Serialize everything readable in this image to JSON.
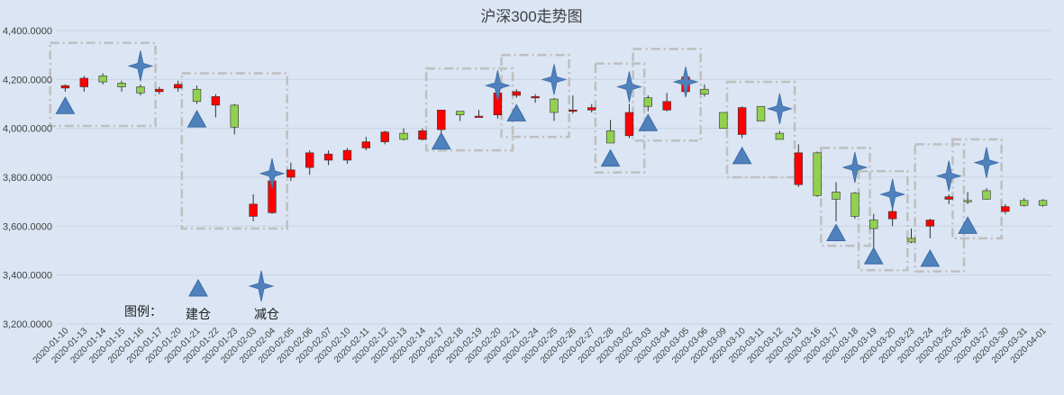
{
  "chart_data": {
    "type": "candlestick",
    "title": "沪深300走势图",
    "xlabel": "",
    "ylabel": "",
    "ylim": [
      3200,
      4400
    ],
    "y_ticks": [
      "3,200.0000",
      "3,400.0000",
      "3,600.0000",
      "3,800.0000",
      "4,000.0000",
      "4,200.0000",
      "4,400.0000"
    ],
    "grid": true,
    "colors": {
      "up": "#ff0000",
      "down": "#92d050",
      "marker": "#4f81bd",
      "box": "#bfbfbf"
    },
    "dates": [
      "2020-01-10",
      "2020-01-13",
      "2020-01-14",
      "2020-01-15",
      "2020-01-16",
      "2020-01-17",
      "2020-01-20",
      "2020-01-21",
      "2020-01-22",
      "2020-01-23",
      "2020-02-03",
      "2020-02-04",
      "2020-02-05",
      "2020-02-06",
      "2020-02-07",
      "2020-02-10",
      "2020-02-11",
      "2020-02-12",
      "2020-02-13",
      "2020-02-14",
      "2020-02-17",
      "2020-02-18",
      "2020-02-19",
      "2020-02-20",
      "2020-02-21",
      "2020-02-24",
      "2020-02-25",
      "2020-02-26",
      "2020-02-27",
      "2020-02-28",
      "2020-03-02",
      "2020-03-03",
      "2020-03-04",
      "2020-03-05",
      "2020-03-06",
      "2020-03-09",
      "2020-03-10",
      "2020-03-11",
      "2020-03-12",
      "2020-03-13",
      "2020-03-16",
      "2020-03-17",
      "2020-03-18",
      "2020-03-19",
      "2020-03-20",
      "2020-03-23",
      "2020-03-24",
      "2020-03-25",
      "2020-03-26",
      "2020-03-27",
      "2020-03-30",
      "2020-03-31",
      "2020-04-01"
    ],
    "ohlc": [
      [
        4165,
        4180,
        4150,
        4175
      ],
      [
        4170,
        4215,
        4150,
        4205
      ],
      [
        4215,
        4225,
        4180,
        4190
      ],
      [
        4185,
        4195,
        4150,
        4170
      ],
      [
        4170,
        4180,
        4135,
        4145
      ],
      [
        4150,
        4170,
        4140,
        4160
      ],
      [
        4165,
        4195,
        4150,
        4180
      ],
      [
        4160,
        4175,
        4100,
        4110
      ],
      [
        4095,
        4140,
        4045,
        4130
      ],
      [
        4095,
        4100,
        3975,
        4005
      ],
      [
        3640,
        3730,
        3620,
        3690
      ],
      [
        3655,
        3790,
        3650,
        3785
      ],
      [
        3800,
        3860,
        3785,
        3830
      ],
      [
        3840,
        3910,
        3810,
        3900
      ],
      [
        3870,
        3910,
        3850,
        3895
      ],
      [
        3870,
        3920,
        3855,
        3910
      ],
      [
        3920,
        3965,
        3910,
        3945
      ],
      [
        3945,
        3990,
        3935,
        3985
      ],
      [
        3980,
        4000,
        3950,
        3955
      ],
      [
        3955,
        4000,
        3950,
        3990
      ],
      [
        3995,
        4075,
        3980,
        4075
      ],
      [
        4070,
        4070,
        4030,
        4055
      ],
      [
        4050,
        4075,
        4045,
        4050
      ],
      [
        4055,
        4145,
        4040,
        4145
      ],
      [
        4135,
        4160,
        4125,
        4150
      ],
      [
        4130,
        4140,
        4105,
        4130
      ],
      [
        4120,
        4125,
        4030,
        4065
      ],
      [
        4075,
        4135,
        4060,
        4075
      ],
      [
        4075,
        4100,
        4065,
        4085
      ],
      [
        3990,
        4035,
        3940,
        3940
      ],
      [
        3970,
        4100,
        3960,
        4065
      ],
      [
        4125,
        4135,
        4070,
        4090
      ],
      [
        4075,
        4145,
        4070,
        4110
      ],
      [
        4150,
        4220,
        4145,
        4210
      ],
      [
        4160,
        4180,
        4130,
        4140
      ],
      [
        4065,
        4065,
        4000,
        4000
      ],
      [
        3975,
        4090,
        3960,
        4085
      ],
      [
        4090,
        4090,
        4030,
        4030
      ],
      [
        3980,
        3990,
        3955,
        3955
      ],
      [
        3770,
        3935,
        3760,
        3900
      ],
      [
        3900,
        3905,
        3720,
        3725
      ],
      [
        3740,
        3780,
        3620,
        3710
      ],
      [
        3735,
        3740,
        3630,
        3640
      ],
      [
        3625,
        3650,
        3500,
        3590
      ],
      [
        3630,
        3680,
        3600,
        3660
      ],
      [
        3550,
        3590,
        3530,
        3535
      ],
      [
        3600,
        3630,
        3550,
        3625
      ],
      [
        3710,
        3730,
        3690,
        3720
      ],
      [
        3705,
        3740,
        3690,
        3700
      ],
      [
        3745,
        3755,
        3710,
        3710
      ],
      [
        3660,
        3690,
        3650,
        3680
      ],
      [
        3705,
        3715,
        3680,
        3685
      ],
      [
        3705,
        3710,
        3680,
        3685
      ]
    ],
    "build_markers": [
      {
        "date": "2020-01-10",
        "value": 4090
      },
      {
        "date": "2020-01-21",
        "value": 4035
      },
      {
        "date": "2020-02-17",
        "value": 3945
      },
      {
        "date": "2020-02-21",
        "value": 4060
      },
      {
        "date": "2020-02-28",
        "value": 3875
      },
      {
        "date": "2020-03-03",
        "value": 4020
      },
      {
        "date": "2020-03-10",
        "value": 3885
      },
      {
        "date": "2020-03-17",
        "value": 3570
      },
      {
        "date": "2020-03-19",
        "value": 3475
      },
      {
        "date": "2020-03-24",
        "value": 3465
      },
      {
        "date": "2020-03-26",
        "value": 3600
      }
    ],
    "reduce_markers": [
      {
        "date": "2020-01-16",
        "value": 4255
      },
      {
        "date": "2020-02-04",
        "value": 3815
      },
      {
        "date": "2020-02-20",
        "value": 4175
      },
      {
        "date": "2020-02-25",
        "value": 4200
      },
      {
        "date": "2020-03-02",
        "value": 4170
      },
      {
        "date": "2020-03-05",
        "value": 4190
      },
      {
        "date": "2020-03-12",
        "value": 4080
      },
      {
        "date": "2020-03-18",
        "value": 3840
      },
      {
        "date": "2020-03-20",
        "value": 3730
      },
      {
        "date": "2020-03-25",
        "value": 3805
      },
      {
        "date": "2020-03-27",
        "value": 3860
      }
    ],
    "highlight_boxes": [
      {
        "from": "2020-01-10",
        "to": "2020-01-16",
        "top": 4350,
        "bottom": 4010
      },
      {
        "from": "2020-01-21",
        "to": "2020-02-04",
        "top": 4225,
        "bottom": 3590
      },
      {
        "from": "2020-02-17",
        "to": "2020-02-20",
        "top": 4245,
        "bottom": 3910
      },
      {
        "from": "2020-02-21",
        "to": "2020-02-25",
        "top": 4300,
        "bottom": 3965
      },
      {
        "from": "2020-02-28",
        "to": "2020-03-02",
        "top": 4265,
        "bottom": 3820
      },
      {
        "from": "2020-03-03",
        "to": "2020-03-05",
        "top": 4325,
        "bottom": 3950
      },
      {
        "from": "2020-03-10",
        "to": "2020-03-12",
        "top": 4190,
        "bottom": 3800
      },
      {
        "from": "2020-03-17",
        "to": "2020-03-18",
        "top": 3920,
        "bottom": 3520
      },
      {
        "from": "2020-03-19",
        "to": "2020-03-20",
        "top": 3825,
        "bottom": 3420
      },
      {
        "from": "2020-03-24",
        "to": "2020-03-25",
        "top": 3935,
        "bottom": 3415
      },
      {
        "from": "2020-03-26",
        "to": "2020-03-27",
        "top": 3955,
        "bottom": 3550
      }
    ],
    "legend": {
      "title": "图例：",
      "build_label": "建仓",
      "reduce_label": "减仓"
    }
  }
}
